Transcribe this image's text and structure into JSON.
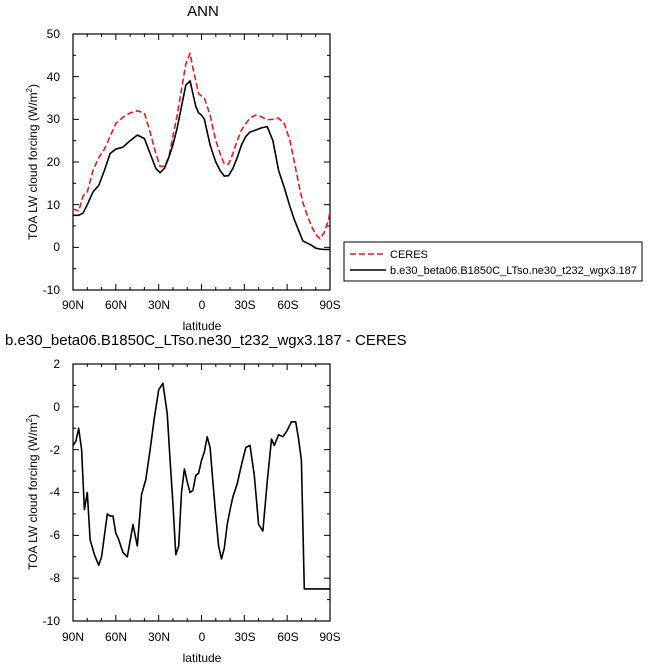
{
  "chart_data": [
    {
      "type": "line",
      "title": "ANN",
      "xlabel": "latitude",
      "ylabel": "TOA LW cloud forcing (W/m",
      "ylabel_sup": "2",
      "ylabel_end": ")",
      "x_tick_labels": [
        "90N",
        "60N",
        "30N",
        "0",
        "30S",
        "60S",
        "90S"
      ],
      "y_tick_labels": [
        "50",
        "40",
        "30",
        "20",
        "10",
        "0",
        "-10"
      ],
      "xlim": [
        -90,
        90
      ],
      "ylim": [
        -10,
        50
      ],
      "series": [
        {
          "name": "CERES",
          "color": "#e41a1c",
          "dash": "dashed",
          "x": [
            -90,
            -86,
            -83,
            -80,
            -76,
            -72,
            -68,
            -64,
            -60,
            -55,
            -50,
            -45,
            -40,
            -36,
            -32,
            -29,
            -26,
            -23,
            -20,
            -17,
            -14,
            -11,
            -8,
            -6,
            -4,
            -2,
            0,
            2,
            4,
            6,
            8,
            10,
            13,
            16,
            19,
            22,
            25,
            28,
            31,
            34,
            38,
            42,
            46,
            50,
            54,
            58,
            62,
            65,
            68,
            71,
            74,
            77,
            80,
            83,
            86,
            89,
            90
          ],
          "values": [
            9,
            8.5,
            12,
            13,
            18,
            21,
            23,
            26,
            29,
            30.5,
            31.5,
            32,
            31.5,
            27,
            22,
            19,
            19,
            21,
            26,
            31,
            37,
            43,
            45.5,
            42,
            39,
            36,
            35.5,
            35,
            33,
            31,
            28,
            25,
            22,
            19.5,
            19.5,
            22,
            25,
            27.5,
            29,
            30.3,
            31,
            30.6,
            29.9,
            30,
            30.3,
            29,
            25,
            20,
            15,
            10.5,
            7.5,
            5,
            3,
            2,
            3.5,
            6.5,
            8.5
          ]
        },
        {
          "name": "b.e30_beta06.B1850C_LTso.ne30_t232_wgx3.187",
          "color": "#000000",
          "dash": "solid",
          "x": [
            -90,
            -86,
            -83,
            -80,
            -76,
            -72,
            -68,
            -64,
            -60,
            -55,
            -50,
            -45,
            -40,
            -36,
            -32,
            -29,
            -26,
            -23,
            -20,
            -17,
            -14,
            -11,
            -8,
            -6,
            -4,
            -2,
            0,
            2,
            4,
            6,
            8,
            10,
            13,
            16,
            19,
            22,
            25,
            28,
            31,
            34,
            38,
            42,
            46,
            50,
            54,
            58,
            62,
            65,
            68,
            71,
            74,
            77,
            80,
            83,
            86,
            89,
            90
          ],
          "values": [
            7.5,
            7.5,
            8,
            10,
            13,
            14.5,
            18,
            22,
            23,
            23.5,
            25,
            26.3,
            25.5,
            22,
            18.5,
            17.5,
            18.5,
            21,
            24,
            28,
            33,
            38,
            39,
            36,
            33,
            31.5,
            31,
            30,
            27,
            24,
            22,
            20,
            18,
            16.7,
            16.8,
            18.5,
            21,
            24,
            26,
            27,
            27.5,
            28,
            28.3,
            25,
            18,
            14,
            9.5,
            6.5,
            4,
            1.5,
            1,
            0.5,
            -0.2,
            -0.4,
            -0.5,
            -0.5,
            -0.5
          ]
        }
      ]
    },
    {
      "type": "line",
      "title": "b.e30_beta06.B1850C_LTso.ne30_t232_wgx3.187 - CERES",
      "xlabel": "latitude",
      "ylabel": "TOA LW cloud forcing (W/m",
      "ylabel_sup": "2",
      "ylabel_end": ")",
      "x_tick_labels": [
        "90N",
        "60N",
        "30N",
        "0",
        "30S",
        "60S",
        "90S"
      ],
      "y_tick_labels": [
        "2",
        "0",
        "-2",
        "-4",
        "-6",
        "-8",
        "-10"
      ],
      "xlim": [
        -90,
        90
      ],
      "ylim": [
        -10,
        2
      ],
      "series": [
        {
          "color": "#000000",
          "dash": "solid",
          "x": [
            -90,
            -88,
            -86,
            -84,
            -82,
            -80,
            -78,
            -75,
            -72,
            -70,
            -66,
            -64,
            -62,
            -60,
            -58,
            -55,
            -52,
            -48,
            -45,
            -42,
            -39,
            -36,
            -33,
            -30,
            -27,
            -24,
            -22,
            -20,
            -18,
            -16,
            -14,
            -12,
            -10,
            -8,
            -6,
            -4,
            -2,
            0,
            2,
            4,
            6,
            8,
            10,
            12,
            14,
            16,
            18,
            20,
            22,
            25,
            28,
            31,
            34,
            37,
            40,
            43,
            46,
            49,
            51,
            54,
            57,
            60,
            63,
            66,
            68,
            70,
            72,
            74,
            76,
            78,
            80,
            82,
            84,
            86,
            87,
            89,
            90
          ],
          "values": [
            -1.8,
            -1.6,
            -1,
            -2,
            -4.8,
            -4,
            -6.2,
            -6.9,
            -7.4,
            -7,
            -5,
            -5.1,
            -5.1,
            -5.9,
            -6.2,
            -6.8,
            -7,
            -5.5,
            -6.5,
            -4.1,
            -3.4,
            -2,
            -0.5,
            0.8,
            1.1,
            -0.3,
            -2.5,
            -4.5,
            -6.9,
            -6.5,
            -4,
            -2.9,
            -3.5,
            -4,
            -3.9,
            -3.2,
            -3.1,
            -2.5,
            -2.1,
            -1.4,
            -1.9,
            -3.5,
            -5.1,
            -6.5,
            -7.1,
            -6.6,
            -5.5,
            -4.8,
            -4.2,
            -3.6,
            -2.7,
            -1.9,
            -1.8,
            -3.2,
            -5.5,
            -5.8,
            -3.5,
            -1.5,
            -1.8,
            -1.3,
            -1.4,
            -1.1,
            -0.7,
            -0.7,
            -1.5,
            -2.5,
            -8.5,
            -8.5,
            -8.5,
            -8.5,
            -8.5,
            -8.5,
            -8.5,
            -8.5,
            -8.5,
            -8.5,
            -8.5
          ]
        }
      ]
    }
  ]
}
